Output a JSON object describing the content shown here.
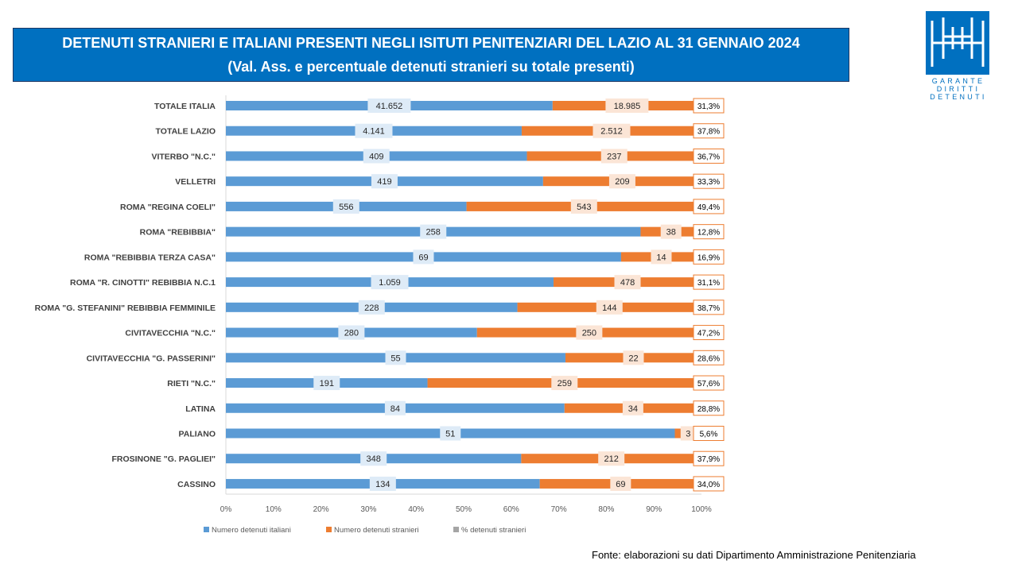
{
  "title": {
    "line1": "DETENUTI STRANIERI E ITALIANI PRESENTI NEGLI ISITUTI PENITENZIARI DEL LAZIO AL 31 GENNAIO 2024",
    "line2": "(Val. Ass. e percentuale  detenuti stranieri su totale presenti)"
  },
  "logo": {
    "lines": [
      "GARANTE",
      "DIRITTI",
      "DETENUTI"
    ],
    "icon": "garante-logo-icon"
  },
  "source": "Fonte: elaborazioni su dati Dipartimento Amministrazione Penitenziaria",
  "colors": {
    "italiani": "#5b9bd5",
    "stranieri": "#ed7d31",
    "percent": "#a5a5a5",
    "title_bg": "#0070c0",
    "label_bg": "#fbe5d6"
  },
  "chart_data": {
    "type": "bar",
    "orientation": "horizontal",
    "stacked": "percent",
    "categories": [
      "TOTALE ITALIA",
      "TOTALE LAZIO",
      "VITERBO \"N.C.\"",
      "VELLETRI",
      "ROMA \"REGINA COELI\"",
      "ROMA \"REBIBBIA\"",
      "ROMA \"REBIBBIA TERZA CASA\"",
      "ROMA \"R. CINOTTI\" REBIBBIA N.C.1",
      "ROMA \"G. STEFANINI\" REBIBBIA FEMMINILE",
      "CIVITAVECCHIA \"N.C.\"",
      "CIVITAVECCHIA \"G. PASSERINI\"",
      "RIETI \"N.C.\"",
      "LATINA",
      "PALIANO",
      "FROSINONE \"G. PAGLIEI\"",
      "CASSINO"
    ],
    "series": [
      {
        "name": "Numero detenuti italiani",
        "values": [
          41652,
          4141,
          409,
          419,
          556,
          258,
          69,
          1059,
          228,
          280,
          55,
          191,
          84,
          51,
          348,
          134
        ],
        "labels": [
          "41.652",
          "4.141",
          "409",
          "419",
          "556",
          "258",
          "69",
          "1.059",
          "228",
          "280",
          "55",
          "191",
          "84",
          "51",
          "348",
          "134"
        ],
        "fractions": [
          0.687,
          0.622,
          0.633,
          0.667,
          0.506,
          0.872,
          0.831,
          0.689,
          0.613,
          0.528,
          0.714,
          0.424,
          0.712,
          0.944,
          0.621,
          0.66
        ]
      },
      {
        "name": "Numero detenuti stranieri",
        "values": [
          18985,
          2512,
          237,
          209,
          543,
          38,
          14,
          478,
          144,
          250,
          22,
          259,
          34,
          3,
          212,
          69
        ],
        "labels": [
          "18.985",
          "2.512",
          "237",
          "209",
          "543",
          "38",
          "14",
          "478",
          "144",
          "250",
          "22",
          "259",
          "34",
          "3",
          "212",
          "69"
        ],
        "fractions": [
          0.313,
          0.378,
          0.367,
          0.333,
          0.494,
          0.128,
          0.169,
          0.311,
          0.387,
          0.472,
          0.286,
          0.576,
          0.288,
          0.056,
          0.379,
          0.34
        ]
      },
      {
        "name": "% detenuti stranieri",
        "labels": [
          "31,3%",
          "37,8%",
          "36,7%",
          "33,3%",
          "49,4%",
          "12,8%",
          "16,9%",
          "31,1%",
          "38,7%",
          "47,2%",
          "28,6%",
          "57,6%",
          "28,8%",
          "5,6%",
          "37,9%",
          "34,0%"
        ]
      }
    ],
    "xticks": [
      "0%",
      "10%",
      "20%",
      "30%",
      "40%",
      "50%",
      "60%",
      "70%",
      "80%",
      "90%",
      "100%"
    ],
    "xlim": [
      0,
      1
    ],
    "grid": false,
    "legend": "bottom-left"
  }
}
